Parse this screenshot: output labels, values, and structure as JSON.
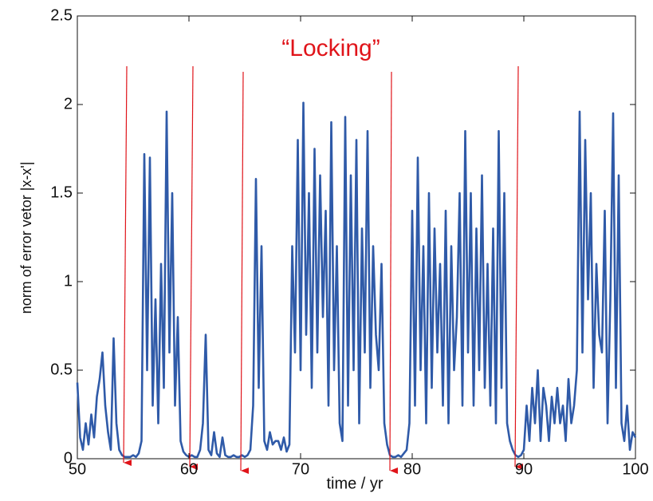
{
  "chart_data": {
    "type": "line",
    "xlabel": "time / yr",
    "ylabel": "norm of error vetor |x-x'|",
    "annotation": "“Locking”",
    "xlim": [
      50,
      100
    ],
    "xticks": [
      50,
      60,
      70,
      80,
      90,
      100
    ],
    "ylim": [
      0,
      2.5
    ],
    "yticks": [
      0,
      0.5,
      1,
      1.5,
      2,
      2.5
    ],
    "grid": false,
    "series": [
      {
        "color": "#2f5aa8",
        "x": [
          50,
          50.25,
          50.5,
          50.75,
          51,
          51.25,
          51.5,
          51.75,
          52,
          52.25,
          52.5,
          52.75,
          53,
          53.25,
          53.5,
          53.75,
          54,
          54.25,
          54.5,
          54.75,
          55,
          55.25,
          55.5,
          55.75,
          56,
          56.25,
          56.5,
          56.75,
          57,
          57.25,
          57.5,
          57.75,
          58,
          58.25,
          58.5,
          58.75,
          59,
          59.25,
          59.5,
          59.75,
          60,
          60.25,
          60.5,
          60.75,
          61,
          61.25,
          61.5,
          61.75,
          62,
          62.25,
          62.5,
          62.75,
          63,
          63.25,
          63.5,
          63.75,
          64,
          64.25,
          64.5,
          64.75,
          65,
          65.25,
          65.5,
          65.75,
          66,
          66.25,
          66.5,
          66.75,
          67,
          67.25,
          67.5,
          67.75,
          68,
          68.25,
          68.5,
          68.75,
          69,
          69.25,
          69.5,
          69.75,
          70,
          70.25,
          70.5,
          70.75,
          71,
          71.25,
          71.5,
          71.75,
          72,
          72.25,
          72.5,
          72.75,
          73,
          73.25,
          73.5,
          73.75,
          74,
          74.25,
          74.5,
          74.75,
          75,
          75.25,
          75.5,
          75.75,
          76,
          76.25,
          76.5,
          76.75,
          77,
          77.25,
          77.5,
          77.75,
          78,
          78.25,
          78.5,
          78.75,
          79,
          79.25,
          79.5,
          79.75,
          80,
          80.25,
          80.5,
          80.75,
          81,
          81.25,
          81.5,
          81.75,
          82,
          82.25,
          82.5,
          82.75,
          83,
          83.25,
          83.5,
          83.75,
          84,
          84.25,
          84.5,
          84.75,
          85,
          85.25,
          85.5,
          85.75,
          86,
          86.25,
          86.5,
          86.75,
          87,
          87.25,
          87.5,
          87.75,
          88,
          88.25,
          88.5,
          88.75,
          89,
          89.25,
          89.5,
          89.75,
          90,
          90.25,
          90.5,
          90.75,
          91,
          91.25,
          91.5,
          91.75,
          92,
          92.25,
          92.5,
          92.75,
          93,
          93.25,
          93.5,
          93.75,
          94,
          94.25,
          94.5,
          94.75,
          95,
          95.25,
          95.5,
          95.75,
          96,
          96.25,
          96.5,
          96.75,
          97,
          97.25,
          97.5,
          97.75,
          98,
          98.25,
          98.5,
          98.75,
          99,
          99.25,
          99.5,
          99.75,
          100
        ],
        "values": [
          0.43,
          0.12,
          0.05,
          0.2,
          0.08,
          0.25,
          0.12,
          0.35,
          0.45,
          0.6,
          0.3,
          0.15,
          0.05,
          0.68,
          0.2,
          0.05,
          0.02,
          0.01,
          0.01,
          0.01,
          0.02,
          0.01,
          0.03,
          0.1,
          1.72,
          0.5,
          1.7,
          0.3,
          0.9,
          0.2,
          1.1,
          0.4,
          1.96,
          0.6,
          1.5,
          0.3,
          0.8,
          0.1,
          0.04,
          0.02,
          0.01,
          0.02,
          0.01,
          0.01,
          0.05,
          0.2,
          0.7,
          0.05,
          0.02,
          0.15,
          0.03,
          0.01,
          0.12,
          0.02,
          0.01,
          0.01,
          0.02,
          0.01,
          0.01,
          0.02,
          0.01,
          0.02,
          0.05,
          0.3,
          1.58,
          0.4,
          1.2,
          0.1,
          0.05,
          0.15,
          0.08,
          0.1,
          0.1,
          0.05,
          0.12,
          0.04,
          0.08,
          1.2,
          0.6,
          1.8,
          0.5,
          2.01,
          0.7,
          1.5,
          0.4,
          1.75,
          0.6,
          1.6,
          0.8,
          1.4,
          0.3,
          1.9,
          0.5,
          1.2,
          0.2,
          0.1,
          1.93,
          0.3,
          1.6,
          0.5,
          1.8,
          0.2,
          1.3,
          0.6,
          1.85,
          0.4,
          1.2,
          0.7,
          0.5,
          1.1,
          0.2,
          0.08,
          0.02,
          0.01,
          0.01,
          0.02,
          0.01,
          0.03,
          0.05,
          0.2,
          1.4,
          0.3,
          1.7,
          0.5,
          1.2,
          0.2,
          1.5,
          0.4,
          1.3,
          0.6,
          1.1,
          0.3,
          1.4,
          0.2,
          1.2,
          0.5,
          0.8,
          1.5,
          0.3,
          1.85,
          0.6,
          1.5,
          0.3,
          1.3,
          0.5,
          1.6,
          0.4,
          1.1,
          0.3,
          1.3,
          0.2,
          1.85,
          0.4,
          1.5,
          0.2,
          0.1,
          0.05,
          0.02,
          0.01,
          0.02,
          0.05,
          0.3,
          0.1,
          0.4,
          0.2,
          0.5,
          0.1,
          0.4,
          0.3,
          0.1,
          0.35,
          0.2,
          0.4,
          0.2,
          0.3,
          0.1,
          0.45,
          0.2,
          0.3,
          0.5,
          1.96,
          0.6,
          1.8,
          0.9,
          1.5,
          0.4,
          1.1,
          0.7,
          0.6,
          1.4,
          0.2,
          0.9,
          1.95,
          0.4,
          1.6,
          0.2,
          0.1,
          0.3,
          0.05,
          0.15,
          0.12
        ]
      }
    ]
  }
}
